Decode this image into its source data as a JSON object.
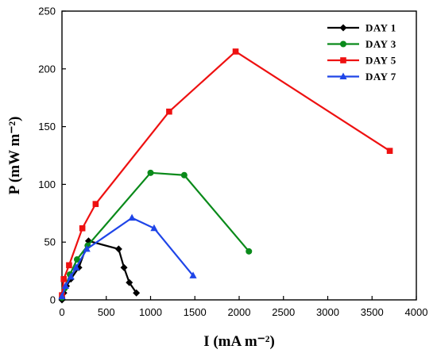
{
  "chart_data": {
    "type": "line",
    "xlabel": "I (mA m⁻²)",
    "ylabel": "P (mW m⁻²)",
    "xlim": [
      0,
      4000
    ],
    "ylim": [
      0,
      250
    ],
    "x_ticks": [
      0,
      500,
      1000,
      1500,
      2000,
      2500,
      3000,
      3500,
      4000
    ],
    "y_ticks": [
      0,
      50,
      100,
      150,
      200,
      250
    ],
    "grid": false,
    "legend_position": "top-right",
    "series": [
      {
        "name": "DAY 1",
        "color": "#000000",
        "marker": "diamond",
        "x": [
          0,
          20,
          50,
          100,
          190,
          300,
          640,
          700,
          760,
          840
        ],
        "y": [
          0,
          6,
          12,
          18,
          28,
          51,
          44,
          28,
          15,
          6
        ]
      },
      {
        "name": "DAY 3",
        "color": "#0a8a1a",
        "marker": "circle",
        "x": [
          0,
          30,
          90,
          170,
          290,
          1000,
          1380,
          2110
        ],
        "y": [
          2,
          10,
          22,
          35,
          47,
          110,
          108,
          42
        ]
      },
      {
        "name": "DAY 5",
        "color": "#ee1111",
        "marker": "square",
        "x": [
          0,
          20,
          80,
          230,
          380,
          1210,
          1960,
          3700
        ],
        "y": [
          4,
          18,
          30,
          62,
          83,
          163,
          215,
          129
        ]
      },
      {
        "name": "DAY 7",
        "color": "#1f45e8",
        "marker": "triangle",
        "x": [
          0,
          40,
          100,
          160,
          280,
          790,
          1040,
          1480
        ],
        "y": [
          3,
          12,
          20,
          28,
          44,
          71,
          62,
          21
        ]
      }
    ]
  }
}
